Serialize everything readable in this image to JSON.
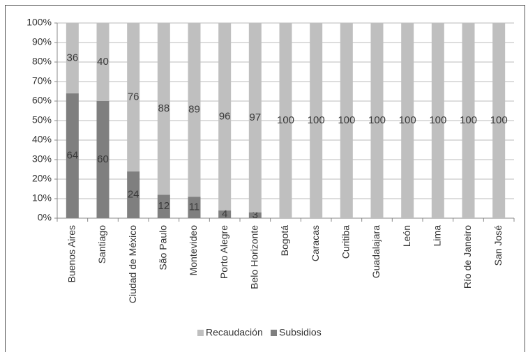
{
  "chart_data": {
    "type": "stacked_bar",
    "categories": [
      "Buenos Aires",
      "Santiago",
      "Ciudad de México",
      "São Paulo",
      "Montevideo",
      "Porto Alegre",
      "Belo Horizonte",
      "Bogotá",
      "Caracas",
      "Curitiba",
      "Guadalajara",
      "León",
      "Lima",
      "Río de Janeiro",
      "San José"
    ],
    "series": [
      {
        "name": "Recaudación",
        "color": "#bfbfbf",
        "values": [
          36,
          40,
          76,
          88,
          89,
          96,
          97,
          100,
          100,
          100,
          100,
          100,
          100,
          100,
          100
        ]
      },
      {
        "name": "Subsidios",
        "color": "#7f7f7f",
        "values": [
          64,
          60,
          24,
          12,
          11,
          4,
          3,
          0,
          0,
          0,
          0,
          0,
          0,
          0,
          0
        ]
      }
    ],
    "ylim": [
      0,
      100
    ],
    "yticks": [
      {
        "value": 0,
        "label": "0%"
      },
      {
        "value": 10,
        "label": "10%"
      },
      {
        "value": 20,
        "label": "20%"
      },
      {
        "value": 30,
        "label": "30%"
      },
      {
        "value": 40,
        "label": "40%"
      },
      {
        "value": 50,
        "label": "50%"
      },
      {
        "value": 60,
        "label": "60%"
      },
      {
        "value": 70,
        "label": "70%"
      },
      {
        "value": 80,
        "label": "80%"
      },
      {
        "value": 90,
        "label": "90%"
      },
      {
        "value": 100,
        "label": "100%"
      }
    ],
    "grid": true,
    "legend": "bottom"
  }
}
